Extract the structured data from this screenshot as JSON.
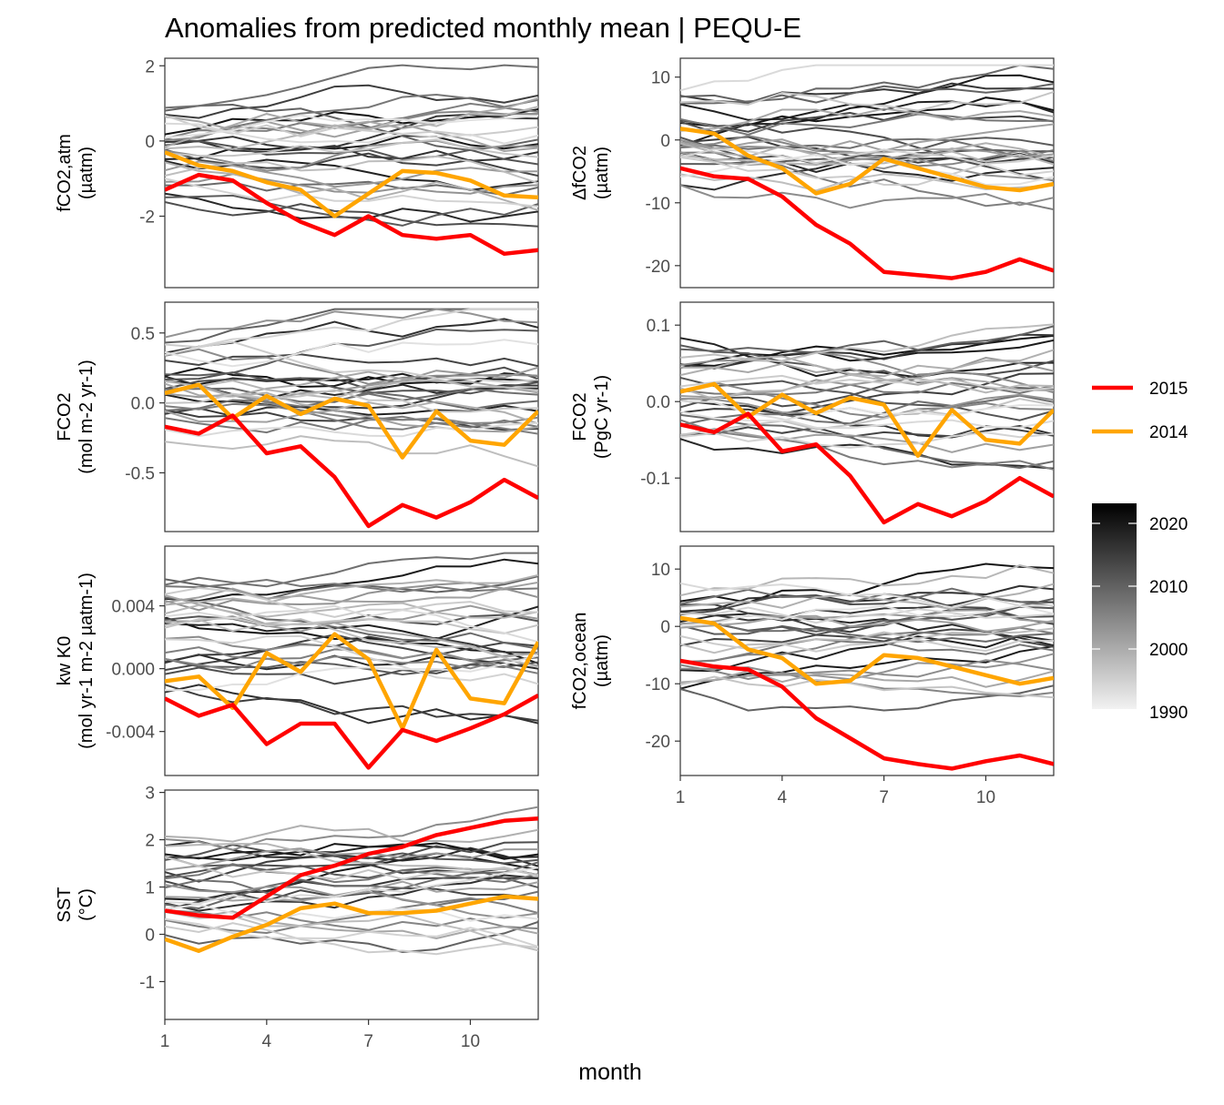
{
  "title": "Anomalies from predicted monthly mean | PEQU-E",
  "x_axis_label": "month",
  "colors": {
    "highlight_2015": "#ff0000",
    "highlight_2014": "#ffa500",
    "background_dark": "#000000",
    "background_light": "#dddddd",
    "frame": "#333333"
  },
  "legend": {
    "lines": [
      {
        "label": "2015",
        "color": "#ff0000"
      },
      {
        "label": "2014",
        "color": "#ffa500"
      }
    ],
    "gradient_ticks": [
      "2020",
      "2010",
      "2000",
      "1990"
    ]
  },
  "chart_data": [
    {
      "type": "line",
      "panel": "fCO2_atm",
      "ylabel_lines": [
        "fCO2,atm",
        "(µatm)"
      ],
      "x_ticks": [
        "1",
        "4",
        "7",
        "10"
      ],
      "y_ticks": [
        "2",
        "0",
        "-2"
      ],
      "ylim": [
        -3.9,
        2.2
      ],
      "xlim": [
        1,
        12
      ],
      "highlight_series": [
        {
          "name": "2015",
          "color": "#ff0000",
          "values": [
            -1.3,
            -0.9,
            -1.05,
            -1.65,
            -2.15,
            -2.5,
            -2.0,
            -2.5,
            -2.6,
            -2.5,
            -3.0,
            -2.9
          ]
        },
        {
          "name": "2014",
          "color": "#ffa500",
          "values": [
            -0.3,
            -0.65,
            -0.8,
            -1.1,
            -1.3,
            -2.0,
            -1.4,
            -0.8,
            -0.85,
            -1.05,
            -1.45,
            -1.5
          ]
        }
      ]
    },
    {
      "type": "line",
      "panel": "dfCO2",
      "ylabel_lines": [
        "ΔfCO2",
        "(µatm)"
      ],
      "x_ticks": [
        "1",
        "4",
        "7",
        "10"
      ],
      "y_ticks": [
        "10",
        "0",
        "-10",
        "-20"
      ],
      "ylim": [
        -23.5,
        13
      ],
      "xlim": [
        1,
        12
      ],
      "highlight_series": [
        {
          "name": "2015",
          "color": "#ff0000",
          "values": [
            -4.5,
            -5.8,
            -6.2,
            -9.0,
            -13.5,
            -16.5,
            -21.0,
            -21.5,
            -22.0,
            -21.0,
            -19.0,
            -20.8
          ]
        },
        {
          "name": "2014",
          "color": "#ffa500",
          "values": [
            1.8,
            1.0,
            -2.5,
            -4.5,
            -8.5,
            -7.0,
            -3.0,
            -4.5,
            -6.0,
            -7.5,
            -8.0,
            -7.0
          ]
        }
      ]
    },
    {
      "type": "line",
      "panel": "FCO2_flux",
      "ylabel_lines": [
        "FCO2",
        "(mol m-2 yr-1)"
      ],
      "x_ticks": [
        "1",
        "4",
        "7",
        "10"
      ],
      "y_ticks": [
        "0.5",
        "0.0",
        "-0.5"
      ],
      "ylim": [
        -0.92,
        0.72
      ],
      "xlim": [
        1,
        12
      ],
      "highlight_series": [
        {
          "name": "2015",
          "color": "#ff0000",
          "values": [
            -0.17,
            -0.22,
            -0.09,
            -0.36,
            -0.31,
            -0.53,
            -0.88,
            -0.73,
            -0.82,
            -0.71,
            -0.55,
            -0.68
          ]
        },
        {
          "name": "2014",
          "color": "#ffa500",
          "values": [
            0.07,
            0.13,
            -0.11,
            0.05,
            -0.08,
            0.03,
            -0.02,
            -0.39,
            -0.06,
            -0.27,
            -0.3,
            -0.06
          ]
        }
      ]
    },
    {
      "type": "line",
      "panel": "FCO2_integrated",
      "ylabel_lines": [
        "FCO2",
        "(PgC yr-1)"
      ],
      "x_ticks": [
        "1",
        "4",
        "7",
        "10"
      ],
      "y_ticks": [
        "0.1",
        "0.0",
        "-0.1"
      ],
      "ylim": [
        -0.17,
        0.13
      ],
      "xlim": [
        1,
        12
      ],
      "highlight_series": [
        {
          "name": "2015",
          "color": "#ff0000",
          "values": [
            -0.03,
            -0.04,
            -0.016,
            -0.065,
            -0.056,
            -0.097,
            -0.158,
            -0.134,
            -0.15,
            -0.13,
            -0.1,
            -0.124
          ]
        },
        {
          "name": "2014",
          "color": "#ffa500",
          "values": [
            0.013,
            0.023,
            -0.02,
            0.009,
            -0.015,
            0.005,
            -0.004,
            -0.071,
            -0.011,
            -0.05,
            -0.055,
            -0.011
          ]
        }
      ]
    },
    {
      "type": "line",
      "panel": "kw_K0",
      "ylabel_lines": [
        "kw K0",
        "(mol yr-1 m-2 µatm-1)"
      ],
      "x_ticks": [
        "1",
        "4",
        "7",
        "10"
      ],
      "y_ticks": [
        "0.004",
        "0.000",
        "-0.004"
      ],
      "ylim": [
        -0.0068,
        0.0078
      ],
      "xlim": [
        1,
        12
      ],
      "highlight_series": [
        {
          "name": "2015",
          "color": "#ff0000",
          "values": [
            -0.0019,
            -0.003,
            -0.0023,
            -0.0048,
            -0.0035,
            -0.0035,
            -0.0063,
            -0.0039,
            -0.0046,
            -0.0038,
            -0.0029,
            -0.0017
          ]
        },
        {
          "name": "2014",
          "color": "#ffa500",
          "values": [
            -0.0008,
            -0.0005,
            -0.0025,
            0.001,
            -0.0002,
            0.0022,
            0.0006,
            -0.0038,
            0.0012,
            -0.0019,
            -0.0022,
            0.0017
          ]
        }
      ]
    },
    {
      "type": "line",
      "panel": "fCO2_ocean",
      "ylabel_lines": [
        "fCO2,ocean",
        "(µatm)"
      ],
      "x_ticks": [
        "1",
        "4",
        "7",
        "10"
      ],
      "y_ticks": [
        "10",
        "0",
        "-10",
        "-20"
      ],
      "ylim": [
        -26,
        14
      ],
      "xlim": [
        1,
        12
      ],
      "highlight_series": [
        {
          "name": "2015",
          "color": "#ff0000",
          "values": [
            -6.0,
            -7.0,
            -7.5,
            -10.5,
            -16.0,
            -19.5,
            -23.0,
            -24.0,
            -24.8,
            -23.5,
            -22.5,
            -24.0
          ]
        },
        {
          "name": "2014",
          "color": "#ffa500",
          "values": [
            1.5,
            0.5,
            -4.0,
            -5.5,
            -10.0,
            -9.5,
            -5.0,
            -5.5,
            -7.0,
            -8.5,
            -10.0,
            -9.0
          ]
        }
      ]
    },
    {
      "type": "line",
      "panel": "SST",
      "ylabel_lines": [
        "SST",
        "(°C)"
      ],
      "x_ticks": [
        "1",
        "4",
        "7",
        "10"
      ],
      "y_ticks": [
        "3",
        "2",
        "1",
        "0",
        "-1"
      ],
      "ylim": [
        -1.8,
        3.05
      ],
      "xlim": [
        1,
        12
      ],
      "highlight_series": [
        {
          "name": "2015",
          "color": "#ff0000",
          "values": [
            0.5,
            0.4,
            0.35,
            0.8,
            1.25,
            1.45,
            1.7,
            1.85,
            2.1,
            2.25,
            2.4,
            2.45
          ]
        },
        {
          "name": "2014",
          "color": "#ffa500",
          "values": [
            -0.1,
            -0.35,
            -0.05,
            0.2,
            0.55,
            0.65,
            0.45,
            0.45,
            0.5,
            0.65,
            0.8,
            0.75
          ]
        }
      ]
    }
  ]
}
